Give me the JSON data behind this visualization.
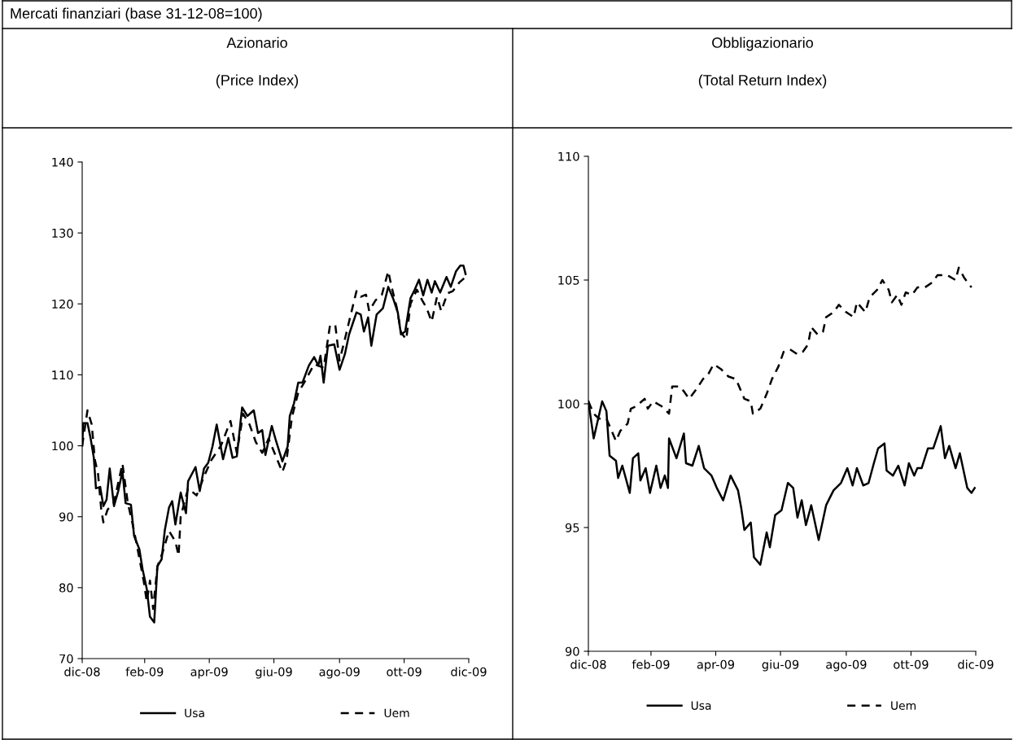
{
  "chart_data": [
    {
      "type": "line",
      "title": "Azionario",
      "subtitle": "(Price Index)",
      "annotations": [
        "Mercati finanziari (base 31-12-08=100)"
      ],
      "xlim": [
        "2008-12-31",
        "2009-12-31"
      ],
      "xticks": [
        {
          "value": "2008-12-31",
          "label": "dic-08"
        },
        {
          "value": "2009-02-28",
          "label": "feb-09"
        },
        {
          "value": "2009-04-30",
          "label": "apr-09"
        },
        {
          "value": "2009-06-30",
          "label": "giu-09"
        },
        {
          "value": "2009-08-31",
          "label": "ago-09"
        },
        {
          "value": "2009-10-31",
          "label": "ott-09"
        },
        {
          "value": "2009-12-31",
          "label": "dic-09"
        }
      ],
      "ylim": [
        70,
        140
      ],
      "yticks": [
        70,
        80,
        90,
        100,
        110,
        120,
        130,
        140
      ],
      "grid": false,
      "legend": "bottom",
      "marker": "none",
      "series": [
        {
          "name": "Usa",
          "color": "#000000",
          "line_style": "solid",
          "x": [
            "2008-12-31",
            "2009-01-01",
            "2009-01-05",
            "2009-01-08",
            "2009-01-11",
            "2009-01-13",
            "2009-01-17",
            "2009-01-20",
            "2009-01-23",
            "2009-01-26",
            "2009-01-30",
            "2009-02-03",
            "2009-02-07",
            "2009-02-10",
            "2009-02-15",
            "2009-02-18",
            "2009-02-23",
            "2009-02-26",
            "2009-03-02",
            "2009-03-05",
            "2009-03-09",
            "2009-03-12",
            "2009-03-16",
            "2009-03-19",
            "2009-03-23",
            "2009-03-26",
            "2009-03-29",
            "2009-04-03",
            "2009-04-08",
            "2009-04-10",
            "2009-04-17",
            "2009-04-21",
            "2009-04-25",
            "2009-04-29",
            "2009-05-03",
            "2009-05-07",
            "2009-05-13",
            "2009-05-18",
            "2009-05-22",
            "2009-05-26",
            "2009-05-31",
            "2009-06-05",
            "2009-06-11",
            "2009-06-15",
            "2009-06-19",
            "2009-06-22",
            "2009-06-28",
            "2009-07-02",
            "2009-07-08",
            "2009-07-13",
            "2009-07-15",
            "2009-07-19",
            "2009-07-23",
            "2009-07-27",
            "2009-08-02",
            "2009-08-07",
            "2009-08-11",
            "2009-08-13",
            "2009-08-16",
            "2009-08-20",
            "2009-08-26",
            "2009-08-31",
            "2009-09-05",
            "2009-09-09",
            "2009-09-16",
            "2009-09-20",
            "2009-09-23",
            "2009-09-27",
            "2009-09-30",
            "2009-10-05",
            "2009-10-11",
            "2009-10-16",
            "2009-10-21",
            "2009-10-25",
            "2009-10-28",
            "2009-11-01",
            "2009-11-06",
            "2009-11-10",
            "2009-11-14",
            "2009-11-18",
            "2009-11-22",
            "2009-11-26",
            "2009-11-29",
            "2009-12-04",
            "2009-12-10",
            "2009-12-14",
            "2009-12-19",
            "2009-12-23",
            "2009-12-26",
            "2009-12-28"
          ],
          "values": [
            100,
            103.2,
            103.2,
            101,
            98.3,
            94,
            94.2,
            91.5,
            92.4,
            96.8,
            91.5,
            93.6,
            96.4,
            91.9,
            91.7,
            87.3,
            85.4,
            82.6,
            79.8,
            75.9,
            75.1,
            83,
            84,
            88.1,
            91.3,
            92.2,
            88.9,
            93.4,
            90.5,
            95,
            97,
            93.6,
            96.8,
            97.6,
            99.9,
            103,
            98.1,
            101.1,
            98.3,
            98.5,
            105.4,
            104.2,
            105,
            101.8,
            102.2,
            98.7,
            102.8,
            100.7,
            97.8,
            99.9,
            104.2,
            106,
            108.9,
            108.9,
            111.3,
            112.5,
            111.3,
            112.7,
            108.9,
            114.1,
            114.3,
            110.7,
            112.9,
            115.7,
            118.8,
            118.5,
            116.1,
            118.1,
            114.1,
            118.5,
            119.4,
            122.4,
            120.6,
            118.8,
            115.7,
            116.1,
            120.8,
            122,
            123.4,
            121.2,
            123.4,
            121.6,
            123.2,
            121.6,
            123.8,
            122.4,
            124.6,
            125.4,
            125.4,
            124.2
          ]
        },
        {
          "name": "Uem",
          "color": "#000000",
          "line_style": "dashed",
          "x": [
            "2008-12-31",
            "2009-01-05",
            "2009-01-09",
            "2009-01-12",
            "2009-01-15",
            "2009-01-18",
            "2009-01-20",
            "2009-01-24",
            "2009-01-30",
            "2009-02-07",
            "2009-02-12",
            "2009-02-18",
            "2009-02-27",
            "2009-03-02",
            "2009-03-05",
            "2009-03-08",
            "2009-03-12",
            "2009-03-17",
            "2009-03-23",
            "2009-03-29",
            "2009-04-01",
            "2009-04-03",
            "2009-04-10",
            "2009-04-18",
            "2009-04-26",
            "2009-05-02",
            "2009-05-11",
            "2009-05-20",
            "2009-05-26",
            "2009-06-01",
            "2009-06-07",
            "2009-06-13",
            "2009-06-19",
            "2009-06-25",
            "2009-07-08",
            "2009-07-12",
            "2009-07-17",
            "2009-07-23",
            "2009-07-29",
            "2009-08-07",
            "2009-08-16",
            "2009-08-22",
            "2009-08-27",
            "2009-08-31",
            "2009-09-05",
            "2009-09-09",
            "2009-09-16",
            "2009-09-20",
            "2009-09-25",
            "2009-09-28",
            "2009-10-04",
            "2009-10-10",
            "2009-10-16",
            "2009-10-19",
            "2009-10-24",
            "2009-10-28",
            "2009-11-02",
            "2009-11-06",
            "2009-11-12",
            "2009-11-17",
            "2009-11-21",
            "2009-11-26",
            "2009-12-01",
            "2009-12-05",
            "2009-12-11",
            "2009-12-16",
            "2009-12-22",
            "2009-12-28"
          ],
          "values": [
            100,
            105,
            103,
            98,
            96,
            91,
            89.2,
            91,
            92,
            97.5,
            92,
            88,
            81,
            78,
            81,
            77,
            83,
            85,
            88,
            86.5,
            84.5,
            90,
            94,
            93,
            96,
            98,
            100,
            103.5,
            99,
            104.5,
            103,
            100.5,
            99,
            101,
            96.3,
            98,
            104,
            107.5,
            109,
            111.5,
            111,
            117,
            117,
            112,
            115,
            117.5,
            121.8,
            121,
            121.3,
            119,
            120.5,
            121.3,
            124.6,
            122.5,
            119.5,
            116,
            115,
            120,
            122,
            120.5,
            119.5,
            117.5,
            121,
            119,
            121.5,
            121.8,
            123,
            123.8
          ]
        }
      ]
    },
    {
      "type": "line",
      "title": "Obbligazionario",
      "subtitle": "(Total Return Index)",
      "xlim": [
        "2008-12-31",
        "2009-12-31"
      ],
      "xticks": [
        {
          "value": "2008-12-31",
          "label": "dic-08"
        },
        {
          "value": "2009-02-28",
          "label": "feb-09"
        },
        {
          "value": "2009-04-30",
          "label": "apr-09"
        },
        {
          "value": "2009-06-30",
          "label": "giu-09"
        },
        {
          "value": "2009-08-31",
          "label": "ago-09"
        },
        {
          "value": "2009-10-31",
          "label": "ott-09"
        },
        {
          "value": "2009-12-31",
          "label": "dic-09"
        }
      ],
      "ylim": [
        90,
        110
      ],
      "yticks": [
        90,
        95,
        100,
        105,
        110
      ],
      "grid": false,
      "legend": "bottom",
      "marker": "none",
      "series": [
        {
          "name": "Usa",
          "color": "#000000",
          "line_style": "solid",
          "x": [
            "2008-12-31",
            "2009-01-05",
            "2009-01-13",
            "2009-01-17",
            "2009-01-20",
            "2009-01-26",
            "2009-01-28",
            "2009-02-01",
            "2009-02-08",
            "2009-02-11",
            "2009-02-16",
            "2009-02-18",
            "2009-02-23",
            "2009-02-27",
            "2009-03-05",
            "2009-03-09",
            "2009-03-13",
            "2009-03-16",
            "2009-03-17",
            "2009-03-24",
            "2009-03-31",
            "2009-04-02",
            "2009-04-08",
            "2009-04-14",
            "2009-04-19",
            "2009-04-26",
            "2009-05-01",
            "2009-05-07",
            "2009-05-14",
            "2009-05-21",
            "2009-05-24",
            "2009-05-27",
            "2009-06-02",
            "2009-06-05",
            "2009-06-11",
            "2009-06-17",
            "2009-06-20",
            "2009-06-25",
            "2009-07-01",
            "2009-07-07",
            "2009-07-12",
            "2009-07-16",
            "2009-07-20",
            "2009-07-24",
            "2009-07-29",
            "2009-08-05",
            "2009-08-12",
            "2009-08-19",
            "2009-08-26",
            "2009-09-01",
            "2009-09-06",
            "2009-09-10",
            "2009-09-16",
            "2009-09-21",
            "2009-09-26",
            "2009-09-30",
            "2009-10-06",
            "2009-10-08",
            "2009-10-14",
            "2009-10-19",
            "2009-10-25",
            "2009-10-29",
            "2009-11-03",
            "2009-11-06",
            "2009-11-10",
            "2009-11-16",
            "2009-11-21",
            "2009-11-28",
            "2009-12-02",
            "2009-12-06",
            "2009-12-12",
            "2009-12-16",
            "2009-12-23",
            "2009-12-27",
            "2009-12-30"
          ],
          "values": [
            100.1,
            98.6,
            100.1,
            99.7,
            97.9,
            97.7,
            97.0,
            97.5,
            96.4,
            97.8,
            98.0,
            96.9,
            97.4,
            96.4,
            97.5,
            96.6,
            97.1,
            96.6,
            98.6,
            97.8,
            98.8,
            97.6,
            97.5,
            98.3,
            97.4,
            97.1,
            96.6,
            96.1,
            97.1,
            96.5,
            95.8,
            94.9,
            95.2,
            93.8,
            93.5,
            94.8,
            94.2,
            95.5,
            95.7,
            96.8,
            96.6,
            95.4,
            96.1,
            95.1,
            95.9,
            94.5,
            95.9,
            96.5,
            96.8,
            97.4,
            96.7,
            97.4,
            96.7,
            96.8,
            97.6,
            98.2,
            98.4,
            97.3,
            97.1,
            97.5,
            96.7,
            97.6,
            97.1,
            97.4,
            97.4,
            98.2,
            98.2,
            99.1,
            97.8,
            98.3,
            97.4,
            98.0,
            96.6,
            96.4,
            96.6
          ]
        },
        {
          "name": "Uem",
          "color": "#000000",
          "line_style": "dashed",
          "x": [
            "2008-12-31",
            "2009-01-05",
            "2009-01-10",
            "2009-01-17",
            "2009-01-26",
            "2009-01-30",
            "2009-02-06",
            "2009-02-09",
            "2009-02-14",
            "2009-02-22",
            "2009-02-25",
            "2009-03-02",
            "2009-03-10",
            "2009-03-17",
            "2009-03-20",
            "2009-03-27",
            "2009-03-31",
            "2009-04-05",
            "2009-04-12",
            "2009-04-18",
            "2009-04-23",
            "2009-04-28",
            "2009-05-05",
            "2009-05-12",
            "2009-05-19",
            "2009-05-23",
            "2009-05-27",
            "2009-06-02",
            "2009-06-04",
            "2009-06-11",
            "2009-06-17",
            "2009-06-22",
            "2009-06-28",
            "2009-07-03",
            "2009-07-09",
            "2009-07-16",
            "2009-07-21",
            "2009-07-26",
            "2009-07-29",
            "2009-08-04",
            "2009-08-09",
            "2009-08-12",
            "2009-08-19",
            "2009-08-24",
            "2009-08-31",
            "2009-09-07",
            "2009-09-10",
            "2009-09-18",
            "2009-09-22",
            "2009-09-29",
            "2009-10-04",
            "2009-10-10",
            "2009-10-13",
            "2009-10-18",
            "2009-10-22",
            "2009-10-26",
            "2009-11-01",
            "2009-11-06",
            "2009-11-13",
            "2009-11-20",
            "2009-11-25",
            "2009-12-04",
            "2009-12-12",
            "2009-12-15",
            "2009-12-20",
            "2009-12-27"
          ],
          "values": [
            100.1,
            99.6,
            99.4,
            99.4,
            98.5,
            98.9,
            99.2,
            99.8,
            99.9,
            100.2,
            99.8,
            100.1,
            99.9,
            99.6,
            100.7,
            100.7,
            100.5,
            100.2,
            100.6,
            101.0,
            101.2,
            101.6,
            101.4,
            101.1,
            101.0,
            100.6,
            100.2,
            100.1,
            99.6,
            99.8,
            100.4,
            101.0,
            101.5,
            102.1,
            102.2,
            102.0,
            102.1,
            102.4,
            103.1,
            102.8,
            102.9,
            103.5,
            103.7,
            104.0,
            103.7,
            103.5,
            104.1,
            103.7,
            104.3,
            104.6,
            105.0,
            104.6,
            104.1,
            104.4,
            104.0,
            104.5,
            104.4,
            104.7,
            104.7,
            104.9,
            105.2,
            105.2,
            105.0,
            105.5,
            105.1,
            104.7
          ]
        }
      ]
    }
  ]
}
